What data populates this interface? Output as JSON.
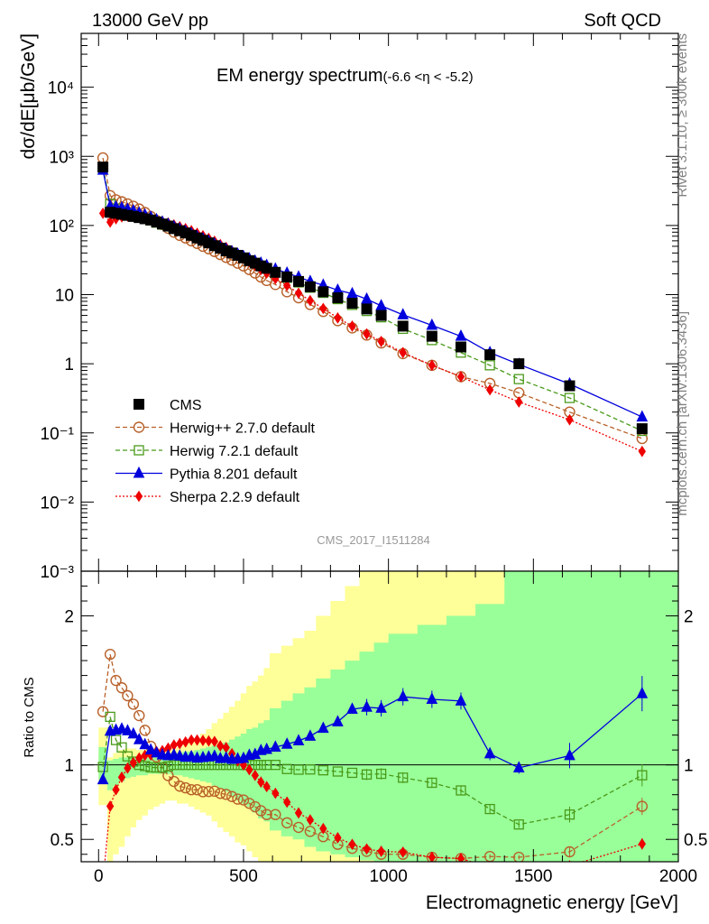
{
  "header": {
    "beam": "13000 GeV pp",
    "process": "Soft QCD",
    "title": "EM energy spectrum",
    "title_cut": "(-6.6 <η < -5.2)",
    "analysis_id": "CMS_2017_I1511284",
    "side_right_top": "Rivet 3.1.10, ≥ 300k events",
    "side_right_bottom": "mcplots.cern.ch [arXiv:1306.3436]"
  },
  "colors": {
    "data": "#000000",
    "herwigpp": "#b8612a",
    "herwig7": "#4a9a1a",
    "pythia": "#0000dd",
    "sherpa": "#ee0000",
    "band_outer": "#ffff99",
    "band_inner": "#99ff99"
  },
  "chart_data": [
    {
      "type": "line",
      "panel": "main",
      "ylabel": "dσ/dE[μb/GeV]",
      "yscale": "log",
      "ylim": [
        0.001,
        60000
      ],
      "xlim": [
        -60,
        2000
      ],
      "y_tick_labels": [
        "10⁻³",
        "10⁻²",
        "10⁻¹",
        "1",
        "10",
        "10²",
        "10³",
        "10⁴"
      ],
      "legend_position": "bottom-left",
      "series": [
        {
          "name": "CMS",
          "key": "data",
          "x": [
            15,
            40,
            60,
            80,
            100,
            120,
            140,
            160,
            180,
            200,
            220,
            240,
            260,
            280,
            300,
            320,
            340,
            360,
            380,
            400,
            420,
            440,
            460,
            480,
            500,
            520,
            540,
            560,
            580,
            610,
            650,
            690,
            730,
            775,
            825,
            875,
            925,
            975,
            1050,
            1150,
            1250,
            1350,
            1450,
            1625,
            1875
          ],
          "y": [
            700,
            155,
            150,
            145,
            140,
            135,
            130,
            125,
            120,
            112,
            105,
            98,
            90,
            84,
            78,
            72,
            66,
            61,
            56,
            51,
            47,
            43,
            40,
            37,
            34,
            31,
            28.5,
            26,
            24,
            21,
            18,
            15.5,
            13,
            11,
            9,
            7.5,
            6.2,
            5,
            3.5,
            2.5,
            1.75,
            1.35,
            1.0,
            0.48,
            0.115
          ]
        },
        {
          "name": "Herwig++ 2.7.0 default",
          "key": "herwigpp",
          "x": [
            15,
            40,
            60,
            80,
            100,
            120,
            140,
            160,
            180,
            200,
            220,
            240,
            260,
            280,
            300,
            320,
            340,
            360,
            380,
            400,
            420,
            440,
            460,
            480,
            500,
            520,
            540,
            560,
            580,
            610,
            650,
            690,
            730,
            775,
            825,
            875,
            925,
            975,
            1050,
            1150,
            1250,
            1350,
            1450,
            1625,
            1875
          ],
          "y": [
            950,
            270,
            235,
            220,
            205,
            190,
            173,
            154,
            135,
            118,
            103,
            91,
            80,
            72,
            66,
            60,
            55,
            50,
            46,
            42,
            38,
            34.5,
            31.5,
            28.5,
            26,
            23,
            20.5,
            18,
            16,
            14,
            11,
            9,
            7.2,
            5.7,
            4.2,
            3.3,
            2.6,
            2.0,
            1.4,
            0.95,
            0.65,
            0.52,
            0.38,
            0.2,
            0.083
          ]
        },
        {
          "name": "Herwig 7.2.1 default",
          "key": "herwig7",
          "x": [
            15,
            40,
            60,
            80,
            100,
            120,
            140,
            160,
            180,
            200,
            220,
            240,
            260,
            280,
            300,
            320,
            340,
            360,
            380,
            400,
            420,
            440,
            460,
            480,
            500,
            520,
            540,
            560,
            580,
            610,
            650,
            690,
            730,
            775,
            825,
            875,
            925,
            975,
            1050,
            1150,
            1250,
            1350,
            1450,
            1625,
            1875
          ],
          "y": [
            690,
            205,
            175,
            162,
            148,
            138,
            130,
            124,
            118,
            110,
            103,
            97,
            90,
            84,
            78,
            72,
            66,
            61,
            56,
            51,
            47,
            43,
            40,
            37,
            34,
            31,
            28.5,
            26,
            24,
            21,
            17.5,
            15,
            12.6,
            10.6,
            8.6,
            7.1,
            5.8,
            4.7,
            3.2,
            2.2,
            1.45,
            0.95,
            0.6,
            0.32,
            0.107
          ]
        },
        {
          "name": "Pythia 8.201 default",
          "key": "pythia",
          "x": [
            15,
            40,
            60,
            80,
            100,
            120,
            140,
            160,
            180,
            200,
            220,
            240,
            260,
            280,
            300,
            320,
            340,
            360,
            380,
            400,
            420,
            440,
            460,
            480,
            500,
            520,
            540,
            560,
            580,
            610,
            650,
            690,
            730,
            775,
            825,
            875,
            925,
            975,
            1050,
            1150,
            1250,
            1350,
            1450,
            1625,
            1875
          ],
          "y": [
            630,
            190,
            185,
            180,
            172,
            163,
            152,
            142,
            132,
            121,
            112,
            104,
            96,
            89,
            82,
            76,
            69,
            64,
            59,
            54,
            49,
            45,
            41.5,
            38.5,
            35.5,
            33,
            30.5,
            28.5,
            26.5,
            23.5,
            20.5,
            18,
            15.5,
            13.7,
            11.6,
            10.3,
            8.6,
            6.9,
            5.1,
            3.6,
            2.5,
            1.45,
            0.98,
            0.51,
            0.17
          ]
        },
        {
          "name": "Sherpa 2.2.9 default",
          "key": "sherpa",
          "x": [
            15,
            40,
            60,
            80,
            100,
            120,
            140,
            160,
            180,
            200,
            220,
            240,
            260,
            280,
            300,
            320,
            340,
            360,
            380,
            400,
            420,
            440,
            460,
            480,
            500,
            520,
            540,
            560,
            580,
            610,
            650,
            690,
            730,
            775,
            825,
            875,
            925,
            975,
            1050,
            1150,
            1250,
            1350,
            1450,
            1625,
            1875
          ],
          "y": [
            150,
            112,
            125,
            133,
            137,
            137,
            136,
            133,
            128,
            122,
            115,
            109,
            102,
            96,
            90,
            84,
            77,
            71,
            65,
            59,
            53,
            48,
            43,
            38,
            34,
            30,
            26.5,
            23,
            20.5,
            17,
            13.5,
            10.5,
            8.2,
            6.3,
            4.6,
            3.5,
            2.7,
            2.1,
            1.45,
            0.95,
            0.65,
            0.42,
            0.28,
            0.155,
            0.054
          ]
        }
      ]
    },
    {
      "type": "line",
      "panel": "ratio",
      "xlabel": "Electromagnetic energy [GeV]",
      "ylabel": "Ratio to CMS",
      "ylim": [
        0.35,
        2.3
      ],
      "xlim": [
        -60,
        2000
      ],
      "x_ticks": [
        0,
        500,
        1000,
        1500,
        2000
      ],
      "y_ticks": [
        0.5,
        1,
        2
      ],
      "bands": {
        "x": [
          0,
          30,
          50,
          70,
          90,
          110,
          130,
          150,
          170,
          190,
          210,
          230,
          250,
          270,
          290,
          310,
          330,
          350,
          370,
          390,
          410,
          430,
          450,
          470,
          490,
          510,
          530,
          550,
          570,
          590,
          630,
          670,
          710,
          750,
          800,
          850,
          900,
          950,
          1000,
          1100,
          1200,
          1300,
          1400,
          1500,
          1750,
          2000
        ],
        "outer_lo": [
          0.73,
          0.35,
          0.4,
          0.45,
          0.52,
          0.58,
          0.63,
          0.66,
          0.7,
          0.72,
          0.74,
          0.76,
          0.76,
          0.74,
          0.74,
          0.72,
          0.7,
          0.68,
          0.66,
          0.62,
          0.58,
          0.55,
          0.52,
          0.48,
          0.46,
          0.42,
          0.38,
          0.35,
          0.35,
          0.35,
          0.35,
          0.35,
          0.35,
          0.35,
          0.35,
          0.35,
          0.35,
          0.35,
          0.35,
          0.35,
          0.35,
          0.35,
          0.35,
          0.35,
          0.35
        ],
        "outer_hi": [
          1.25,
          1.05,
          1.08,
          1.1,
          1.11,
          1.11,
          1.1,
          1.1,
          1.1,
          1.1,
          1.1,
          1.1,
          1.11,
          1.12,
          1.14,
          1.16,
          1.18,
          1.21,
          1.24,
          1.28,
          1.31,
          1.35,
          1.39,
          1.43,
          1.48,
          1.53,
          1.56,
          1.6,
          1.65,
          1.75,
          1.8,
          1.85,
          1.9,
          2.0,
          2.1,
          2.2,
          2.3,
          2.3,
          2.3,
          2.3,
          2.3,
          2.3,
          2.3,
          2.3,
          2.3
        ],
        "inner_lo": [
          0.9,
          0.83,
          0.86,
          0.89,
          0.91,
          0.92,
          0.93,
          0.93,
          0.94,
          0.94,
          0.94,
          0.94,
          0.93,
          0.93,
          0.92,
          0.91,
          0.9,
          0.89,
          0.88,
          0.86,
          0.84,
          0.82,
          0.79,
          0.76,
          0.74,
          0.72,
          0.68,
          0.64,
          0.62,
          0.56,
          0.52,
          0.5,
          0.45,
          0.42,
          0.4,
          0.38,
          0.36,
          0.35,
          0.35,
          0.35,
          0.35,
          0.35,
          0.35,
          0.35,
          0.35
        ],
        "inner_hi": [
          1.12,
          1.03,
          1.04,
          1.05,
          1.05,
          1.05,
          1.05,
          1.05,
          1.05,
          1.05,
          1.06,
          1.07,
          1.08,
          1.08,
          1.09,
          1.09,
          1.1,
          1.11,
          1.12,
          1.13,
          1.14,
          1.15,
          1.17,
          1.19,
          1.21,
          1.24,
          1.25,
          1.28,
          1.3,
          1.38,
          1.43,
          1.48,
          1.52,
          1.58,
          1.64,
          1.7,
          1.76,
          1.82,
          1.88,
          1.94,
          2.0,
          2.08,
          2.3,
          2.3,
          2.3
        ]
      }
    }
  ]
}
